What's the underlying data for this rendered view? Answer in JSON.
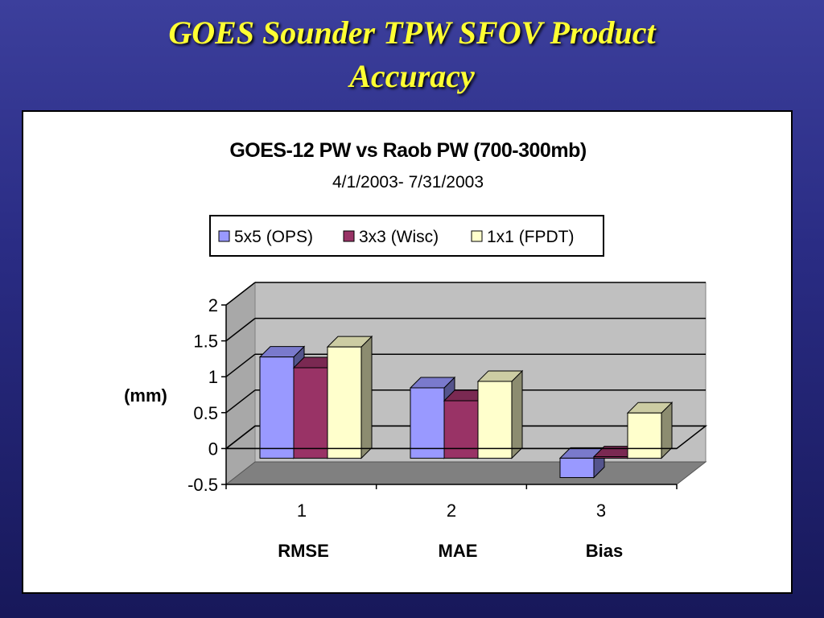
{
  "slide": {
    "title_line1": "GOES Sounder TPW SFOV Product",
    "title_line2": "Accuracy"
  },
  "colors": {
    "background": "#2a2c84",
    "title": "#ffff33",
    "wall": "#c0c0c0",
    "floor": "#808080"
  },
  "chart_data": {
    "type": "bar",
    "title": "GOES-12 PW vs Raob PW (700-300mb)",
    "subtitle": "4/1/2003- 7/31/2003",
    "ylabel": "(mm)",
    "ylim": [
      -0.5,
      2
    ],
    "yticks": [
      "2",
      "1.5",
      "1",
      "0.5",
      "0",
      "-0.5"
    ],
    "ytick_values": [
      2,
      1.5,
      1,
      0.5,
      0,
      -0.5
    ],
    "categories": [
      "1",
      "2",
      "3"
    ],
    "category_labels": [
      "RMSE",
      "MAE",
      "Bias"
    ],
    "grid": true,
    "legend_position": "top",
    "series": [
      {
        "name": "5x5 (OPS)",
        "values": [
          1.41,
          0.98,
          -0.27
        ],
        "color": "#9999ff"
      },
      {
        "name": "3x3 (Wisc)",
        "values": [
          1.26,
          0.8,
          0.02
        ],
        "color": "#993366"
      },
      {
        "name": "1x1 (FPDT)",
        "values": [
          1.55,
          1.07,
          0.63
        ],
        "color": "#ffffcc"
      }
    ]
  }
}
